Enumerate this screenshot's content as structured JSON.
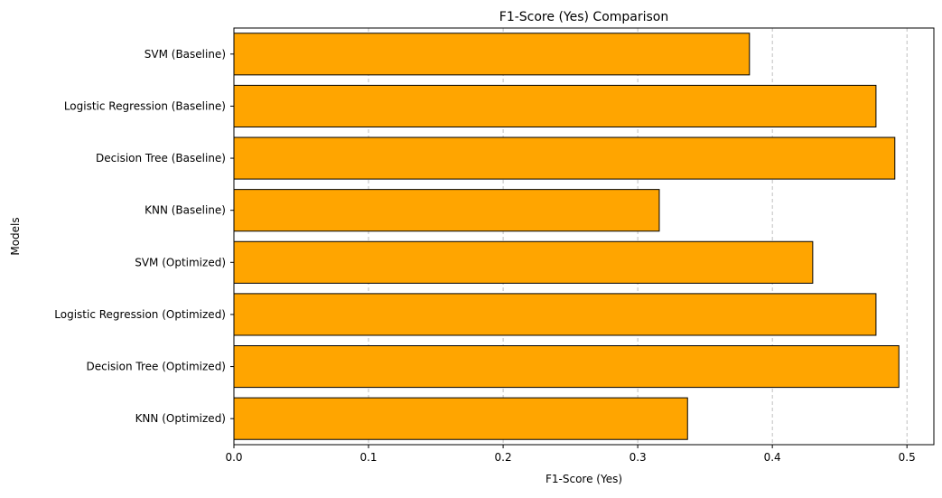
{
  "chart_data": {
    "type": "bar",
    "orientation": "horizontal",
    "title": "F1-Score (Yes) Comparison",
    "xlabel": "F1-Score (Yes)",
    "ylabel": "Models",
    "xlim": [
      0,
      0.52
    ],
    "xticks": [
      "0.0",
      "0.1",
      "0.2",
      "0.3",
      "0.4",
      "0.5"
    ],
    "grid": "x-axis, dashed",
    "categories": [
      "SVM (Baseline)",
      "Logistic Regression (Baseline)",
      "Decision Tree (Baseline)",
      "KNN (Baseline)",
      "SVM (Optimized)",
      "Logistic Regression (Optimized)",
      "Decision Tree (Optimized)",
      "KNN (Optimized)"
    ],
    "values": [
      0.383,
      0.477,
      0.491,
      0.316,
      0.43,
      0.477,
      0.494,
      0.337
    ],
    "colors": {
      "bar_fill": "#ffa500",
      "bar_edge": "#000000",
      "grid": "#b0b0b0",
      "axis": "#000000"
    }
  }
}
